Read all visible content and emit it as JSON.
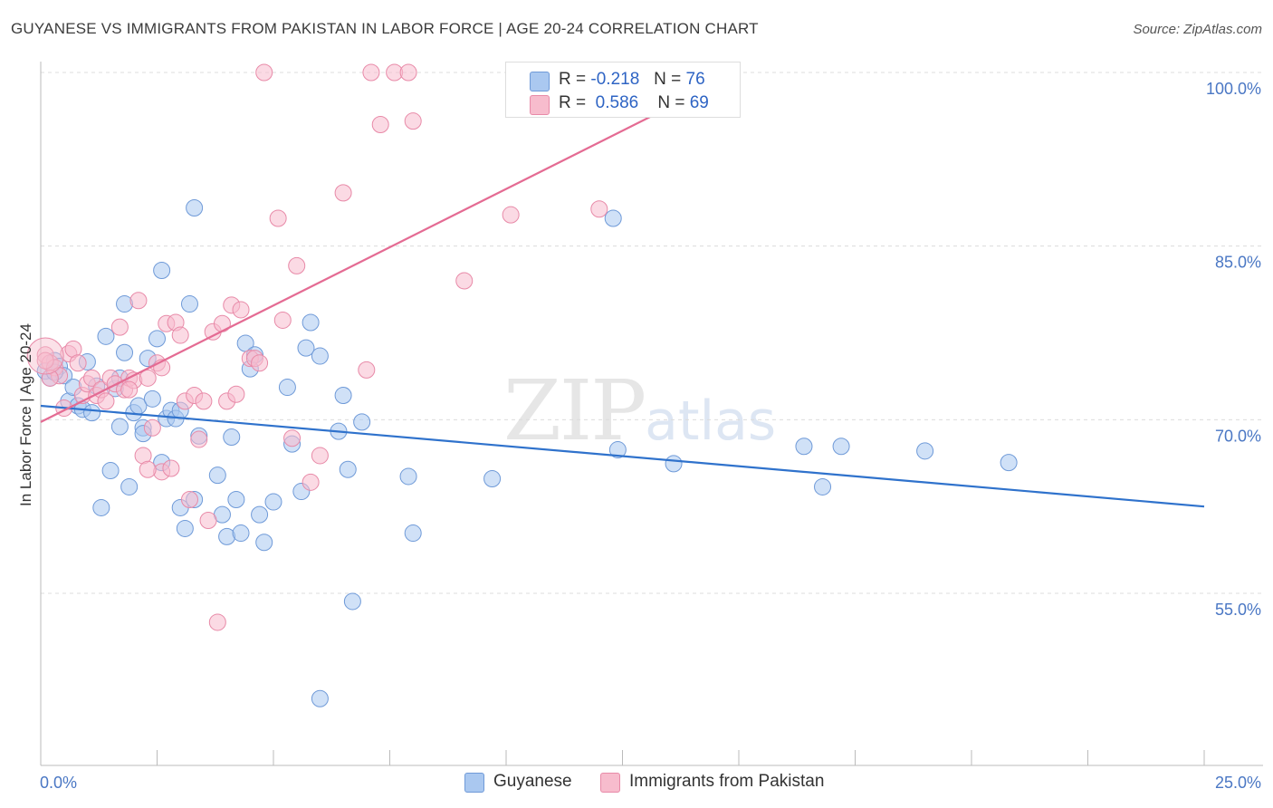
{
  "title": "GUYANESE VS IMMIGRANTS FROM PAKISTAN IN LABOR FORCE | AGE 20-24 CORRELATION CHART",
  "source": "Source: ZipAtlas.com",
  "legend": {
    "row1": {
      "r_label": "R =",
      "r_value": "-0.218",
      "n_label": "N =",
      "n_value": "76"
    },
    "row2": {
      "r_label": "R =",
      "r_value": "0.586",
      "n_label": "N =",
      "n_value": "69"
    }
  },
  "bottom_legend": {
    "series1": "Guyanese",
    "series2": "Immigrants from Pakistan"
  },
  "watermark": {
    "zip": "ZIP",
    "atlas": "atlas"
  },
  "colors": {
    "blue_fill": "#aac8f0",
    "blue_stroke": "#6f9ad8",
    "blue_line": "#2f72cc",
    "pink_fill": "#f7bccd",
    "pink_stroke": "#e88aa8",
    "pink_line": "#e46b93",
    "tick_label": "#4a77c4"
  },
  "chart_data": {
    "type": "scatter",
    "title": "GUYANESE VS IMMIGRANTS FROM PAKISTAN IN LABOR FORCE | AGE 20-24 CORRELATION CHART",
    "xlabel": "",
    "ylabel": "In Labor Force | Age 20-24",
    "xlim": [
      0,
      25
    ],
    "ylim": [
      40,
      102
    ],
    "x_tick_labels": [
      "0.0%",
      "25.0%"
    ],
    "y_ticks": [
      55,
      70,
      85,
      100
    ],
    "y_tick_labels": [
      "55.0%",
      "70.0%",
      "85.0%",
      "100.0%"
    ],
    "grid": true,
    "legend_position": "top-center",
    "series": [
      {
        "name": "Guyanese",
        "color": "#aac8f0",
        "R": -0.218,
        "N": 76,
        "trend": {
          "x": [
            0,
            25
          ],
          "y": [
            71.2,
            62.5
          ]
        },
        "points": [
          [
            0.1,
            74.2
          ],
          [
            0.2,
            73.6
          ],
          [
            0.3,
            75.1
          ],
          [
            0.4,
            74.6
          ],
          [
            0.5,
            73.8
          ],
          [
            0.6,
            71.6
          ],
          [
            0.7,
            72.8
          ],
          [
            0.8,
            71.2
          ],
          [
            0.9,
            70.9
          ],
          [
            1.0,
            75.0
          ],
          [
            1.1,
            70.6
          ],
          [
            1.2,
            72.9
          ],
          [
            1.3,
            62.4
          ],
          [
            1.4,
            77.2
          ],
          [
            1.5,
            65.6
          ],
          [
            1.6,
            72.7
          ],
          [
            1.7,
            69.4
          ],
          [
            1.8,
            80.0
          ],
          [
            1.8,
            75.8
          ],
          [
            1.9,
            64.2
          ],
          [
            2.0,
            70.6
          ],
          [
            2.1,
            71.2
          ],
          [
            2.2,
            69.3
          ],
          [
            2.2,
            68.8
          ],
          [
            2.3,
            75.3
          ],
          [
            2.4,
            71.8
          ],
          [
            2.5,
            77.0
          ],
          [
            2.6,
            82.9
          ],
          [
            2.6,
            66.3
          ],
          [
            2.7,
            70.1
          ],
          [
            2.8,
            70.8
          ],
          [
            2.9,
            70.1
          ],
          [
            3.0,
            62.4
          ],
          [
            3.0,
            70.8
          ],
          [
            3.1,
            60.6
          ],
          [
            3.2,
            80.0
          ],
          [
            3.3,
            63.1
          ],
          [
            3.3,
            88.3
          ],
          [
            3.4,
            68.6
          ],
          [
            3.8,
            65.2
          ],
          [
            3.9,
            61.8
          ],
          [
            4.0,
            59.9
          ],
          [
            4.1,
            68.5
          ],
          [
            4.2,
            63.1
          ],
          [
            4.3,
            60.2
          ],
          [
            4.4,
            76.6
          ],
          [
            4.5,
            74.4
          ],
          [
            4.6,
            75.6
          ],
          [
            4.7,
            61.8
          ],
          [
            4.8,
            59.4
          ],
          [
            5.0,
            62.9
          ],
          [
            5.3,
            72.8
          ],
          [
            5.4,
            67.9
          ],
          [
            5.6,
            63.8
          ],
          [
            5.7,
            76.2
          ],
          [
            5.8,
            78.4
          ],
          [
            6.0,
            75.5
          ],
          [
            6.0,
            45.9
          ],
          [
            6.4,
            69.0
          ],
          [
            6.5,
            72.1
          ],
          [
            6.6,
            65.7
          ],
          [
            6.7,
            54.3
          ],
          [
            6.9,
            69.8
          ],
          [
            7.9,
            65.1
          ],
          [
            8.0,
            60.2
          ],
          [
            9.7,
            64.9
          ],
          [
            12.3,
            87.4
          ],
          [
            12.4,
            67.4
          ],
          [
            13.6,
            66.2
          ],
          [
            16.4,
            67.7
          ],
          [
            16.8,
            64.2
          ],
          [
            17.2,
            67.7
          ],
          [
            19.0,
            67.3
          ],
          [
            20.8,
            66.3
          ],
          [
            1.7,
            73.6
          ],
          [
            0.3,
            74.1
          ]
        ]
      },
      {
        "name": "Immigrants from Pakistan",
        "color": "#f7bccd",
        "R": 0.586,
        "N": 69,
        "trend": {
          "x": [
            0,
            15
          ],
          "y": [
            69.8,
            100.0
          ]
        },
        "points": [
          [
            0.1,
            75.6
          ],
          [
            0.2,
            74.9
          ],
          [
            0.3,
            74.5
          ],
          [
            0.4,
            73.8
          ],
          [
            0.5,
            71.0
          ],
          [
            0.6,
            75.7
          ],
          [
            0.7,
            76.1
          ],
          [
            0.8,
            74.9
          ],
          [
            0.9,
            72.1
          ],
          [
            1.0,
            73.1
          ],
          [
            1.1,
            73.6
          ],
          [
            1.2,
            72.1
          ],
          [
            1.3,
            72.6
          ],
          [
            1.4,
            71.6
          ],
          [
            1.5,
            73.6
          ],
          [
            1.6,
            73.1
          ],
          [
            1.7,
            78.0
          ],
          [
            1.8,
            72.6
          ],
          [
            1.9,
            73.6
          ],
          [
            2.0,
            73.4
          ],
          [
            2.1,
            80.3
          ],
          [
            2.2,
            66.9
          ],
          [
            2.3,
            73.6
          ],
          [
            2.4,
            69.3
          ],
          [
            2.5,
            74.9
          ],
          [
            2.6,
            74.5
          ],
          [
            2.6,
            65.5
          ],
          [
            2.7,
            78.3
          ],
          [
            2.8,
            65.8
          ],
          [
            2.9,
            78.4
          ],
          [
            3.0,
            77.3
          ],
          [
            3.1,
            71.6
          ],
          [
            3.2,
            63.1
          ],
          [
            3.3,
            72.1
          ],
          [
            3.4,
            68.3
          ],
          [
            3.5,
            71.6
          ],
          [
            3.6,
            61.3
          ],
          [
            3.7,
            77.6
          ],
          [
            3.8,
            52.5
          ],
          [
            3.9,
            78.3
          ],
          [
            4.0,
            71.6
          ],
          [
            4.1,
            79.9
          ],
          [
            4.2,
            72.2
          ],
          [
            4.3,
            79.5
          ],
          [
            4.5,
            75.3
          ],
          [
            4.6,
            75.3
          ],
          [
            4.7,
            74.9
          ],
          [
            4.8,
            100.0
          ],
          [
            5.1,
            87.4
          ],
          [
            5.2,
            78.6
          ],
          [
            5.4,
            68.4
          ],
          [
            5.5,
            83.3
          ],
          [
            5.8,
            64.6
          ],
          [
            6.0,
            66.9
          ],
          [
            6.5,
            89.6
          ],
          [
            7.0,
            74.3
          ],
          [
            7.1,
            100.0
          ],
          [
            7.3,
            95.5
          ],
          [
            7.6,
            100.0
          ],
          [
            7.9,
            100.0
          ],
          [
            8.0,
            95.8
          ],
          [
            9.1,
            82.0
          ],
          [
            10.1,
            87.7
          ],
          [
            12.0,
            88.2
          ],
          [
            14.1,
            100.0
          ],
          [
            0.1,
            75.1
          ],
          [
            0.2,
            73.6
          ],
          [
            1.9,
            72.6
          ],
          [
            2.3,
            65.7
          ]
        ]
      }
    ]
  }
}
